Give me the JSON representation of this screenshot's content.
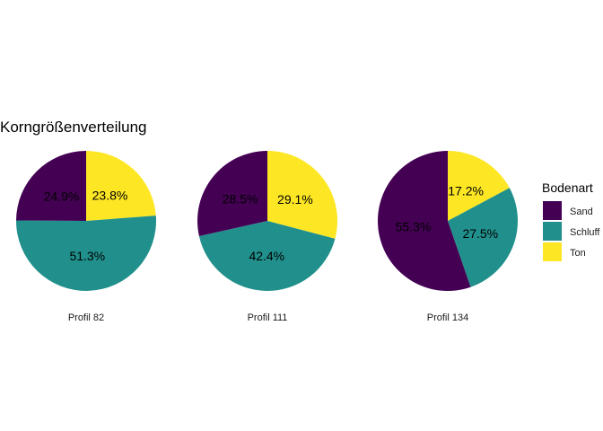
{
  "chart_data": {
    "type": "pie",
    "title": "Korngrößenverteilung",
    "legend": {
      "title": "Bodenart",
      "placement": "right",
      "entries": [
        "Sand",
        "Schluff",
        "Ton"
      ]
    },
    "colors": {
      "Sand": "#440154",
      "Schluff": "#21908C",
      "Ton": "#FDE725"
    },
    "categories": [
      "Sand",
      "Schluff",
      "Ton"
    ],
    "pies": [
      {
        "label": "Profil 82",
        "values": [
          24.9,
          51.3,
          23.8
        ],
        "value_labels": [
          "24.9%",
          "51.3%",
          "23.8%"
        ]
      },
      {
        "label": "Profil 111",
        "values": [
          28.5,
          42.4,
          29.1
        ],
        "value_labels": [
          "28.5%",
          "42.4%",
          "29.1%"
        ]
      },
      {
        "label": "Profil 134",
        "values": [
          55.3,
          27.5,
          17.2
        ],
        "value_labels": [
          "55.3%",
          "27.5%",
          "17.2%"
        ]
      }
    ]
  }
}
